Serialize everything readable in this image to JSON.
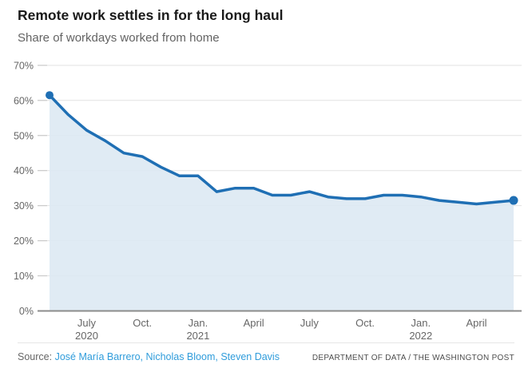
{
  "header": {
    "title": "Remote work settles in for the long haul",
    "subtitle": "Share of workdays worked from home"
  },
  "footer": {
    "source_prefix": "Source:",
    "source_links": [
      "José María Barrero",
      "Nicholas Bloom",
      "Steven Davis"
    ],
    "credit": "DEPARTMENT OF DATA / THE WASHINGTON POST"
  },
  "chart_data": {
    "type": "area",
    "title": "Remote work settles in for the long haul",
    "subtitle": "Share of workdays worked from home",
    "xlabel": "",
    "ylabel": "Share of workdays worked from home (%)",
    "ylim": [
      0,
      70
    ],
    "y_ticks": [
      "0%",
      "10%",
      "20%",
      "30%",
      "40%",
      "50%",
      "60%",
      "70%"
    ],
    "grid": true,
    "legend": false,
    "months": [
      "May 2020",
      "June 2020",
      "July 2020",
      "Aug. 2020",
      "Sep. 2020",
      "Oct. 2020",
      "Nov. 2020",
      "Dec. 2020",
      "Jan. 2021",
      "Feb. 2021",
      "March 2021",
      "April 2021",
      "May 2021",
      "June 2021",
      "July 2021",
      "Aug. 2021",
      "Sep. 2021",
      "Oct. 2021",
      "Nov. 2021",
      "Dec. 2021",
      "Jan. 2022",
      "Feb. 2022",
      "March 2022",
      "April 2022",
      "May 2022",
      "June 2022"
    ],
    "values": [
      61.5,
      56,
      51.5,
      48.5,
      45,
      44,
      41,
      38.5,
      38.5,
      34,
      35,
      35,
      33,
      33,
      34,
      32.5,
      32,
      32,
      33,
      33,
      32.5,
      31.5,
      31,
      30.5,
      31,
      31.5
    ],
    "x_ticks": [
      {
        "label": "July",
        "year": "2020",
        "month_index": 2
      },
      {
        "label": "Oct.",
        "year": "",
        "month_index": 5
      },
      {
        "label": "Jan.",
        "year": "2021",
        "month_index": 8
      },
      {
        "label": "April",
        "year": "",
        "month_index": 11
      },
      {
        "label": "July",
        "year": "",
        "month_index": 14
      },
      {
        "label": "Oct.",
        "year": "",
        "month_index": 17
      },
      {
        "label": "Jan.",
        "year": "2022",
        "month_index": 20
      },
      {
        "label": "April",
        "year": "",
        "month_index": 23
      }
    ],
    "markers": [
      "first",
      "last"
    ],
    "colors": {
      "line": "#1f6fb4",
      "marker": "#1f6fb4",
      "fill": "#dce8f3",
      "grid": "#e2e2e2",
      "tick_dash": "#c4c4c4",
      "axis": "#8c8c8c",
      "tick_text": "#666666",
      "link": "#2f9cdb"
    }
  }
}
